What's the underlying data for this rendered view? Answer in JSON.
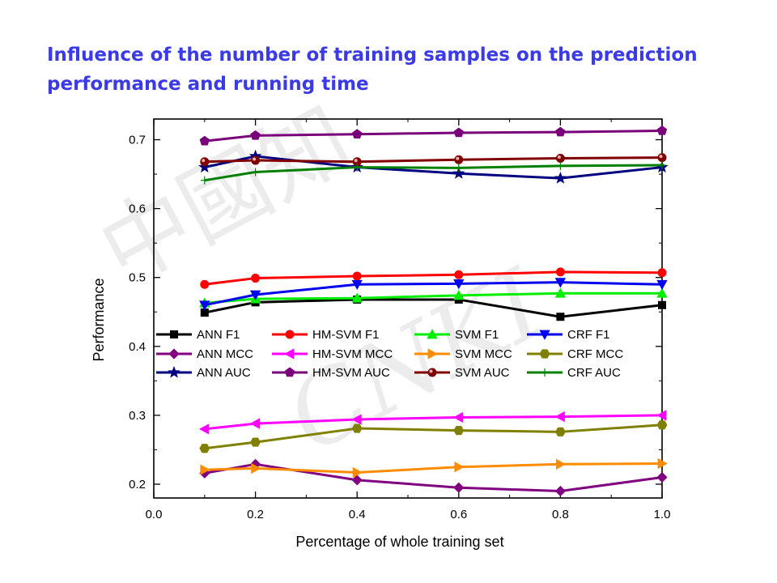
{
  "title": "Influence of the number of training samples on the prediction performance and running time",
  "watermark": "中國知 CNKI",
  "chart_data": {
    "type": "line",
    "xlabel": "Percentage of whole training set",
    "ylabel": "Performance",
    "xlim": [
      0.0,
      1.0
    ],
    "ylim": [
      0.18,
      0.73
    ],
    "xticks": [
      "0.0",
      "0.2",
      "0.4",
      "0.6",
      "0.8",
      "1.0"
    ],
    "yticks": [
      "0.2",
      "0.3",
      "0.4",
      "0.5",
      "0.6",
      "0.7"
    ],
    "x": [
      0.1,
      0.2,
      0.4,
      0.6,
      0.8,
      1.0
    ],
    "legend_position": "center",
    "series": [
      {
        "name": "ANN F1",
        "color": "#000000",
        "marker": "square",
        "values": [
          0.449,
          0.464,
          0.468,
          0.468,
          0.443,
          0.46
        ]
      },
      {
        "name": "HM-SVM F1",
        "color": "#ff0000",
        "marker": "circle",
        "values": [
          0.49,
          0.499,
          0.502,
          0.504,
          0.508,
          0.507
        ]
      },
      {
        "name": "SVM F1",
        "color": "#00ee00",
        "marker": "triangle-up",
        "values": [
          0.463,
          0.469,
          0.47,
          0.474,
          0.477,
          0.477
        ]
      },
      {
        "name": "CRF F1",
        "color": "#0000ee",
        "marker": "triangle-down",
        "values": [
          0.46,
          0.475,
          0.49,
          0.491,
          0.493,
          0.49
        ]
      },
      {
        "name": "ANN MCC",
        "color": "#800080",
        "marker": "diamond",
        "values": [
          0.216,
          0.229,
          0.206,
          0.195,
          0.19,
          0.21
        ]
      },
      {
        "name": "HM-SVM MCC",
        "color": "#ff00ff",
        "marker": "triangle-left",
        "values": [
          0.28,
          0.288,
          0.294,
          0.297,
          0.298,
          0.3
        ]
      },
      {
        "name": "SVM MCC",
        "color": "#ff8c00",
        "marker": "triangle-right",
        "values": [
          0.221,
          0.223,
          0.217,
          0.225,
          0.229,
          0.23
        ]
      },
      {
        "name": "CRF MCC",
        "color": "#808000",
        "marker": "hexagon",
        "values": [
          0.252,
          0.261,
          0.281,
          0.278,
          0.276,
          0.286
        ]
      },
      {
        "name": "ANN AUC",
        "color": "#000080",
        "marker": "star",
        "values": [
          0.66,
          0.676,
          0.66,
          0.651,
          0.644,
          0.66
        ]
      },
      {
        "name": "HM-SVM AUC",
        "color": "#7a007a",
        "marker": "pentagon",
        "values": [
          0.698,
          0.706,
          0.708,
          0.71,
          0.711,
          0.713
        ]
      },
      {
        "name": "SVM AUC",
        "color": "#800000",
        "marker": "circle-half",
        "values": [
          0.668,
          0.67,
          0.668,
          0.671,
          0.673,
          0.674
        ]
      },
      {
        "name": "CRF AUC",
        "color": "#008000",
        "marker": "plus",
        "values": [
          0.641,
          0.653,
          0.66,
          0.659,
          0.662,
          0.663
        ]
      }
    ]
  }
}
